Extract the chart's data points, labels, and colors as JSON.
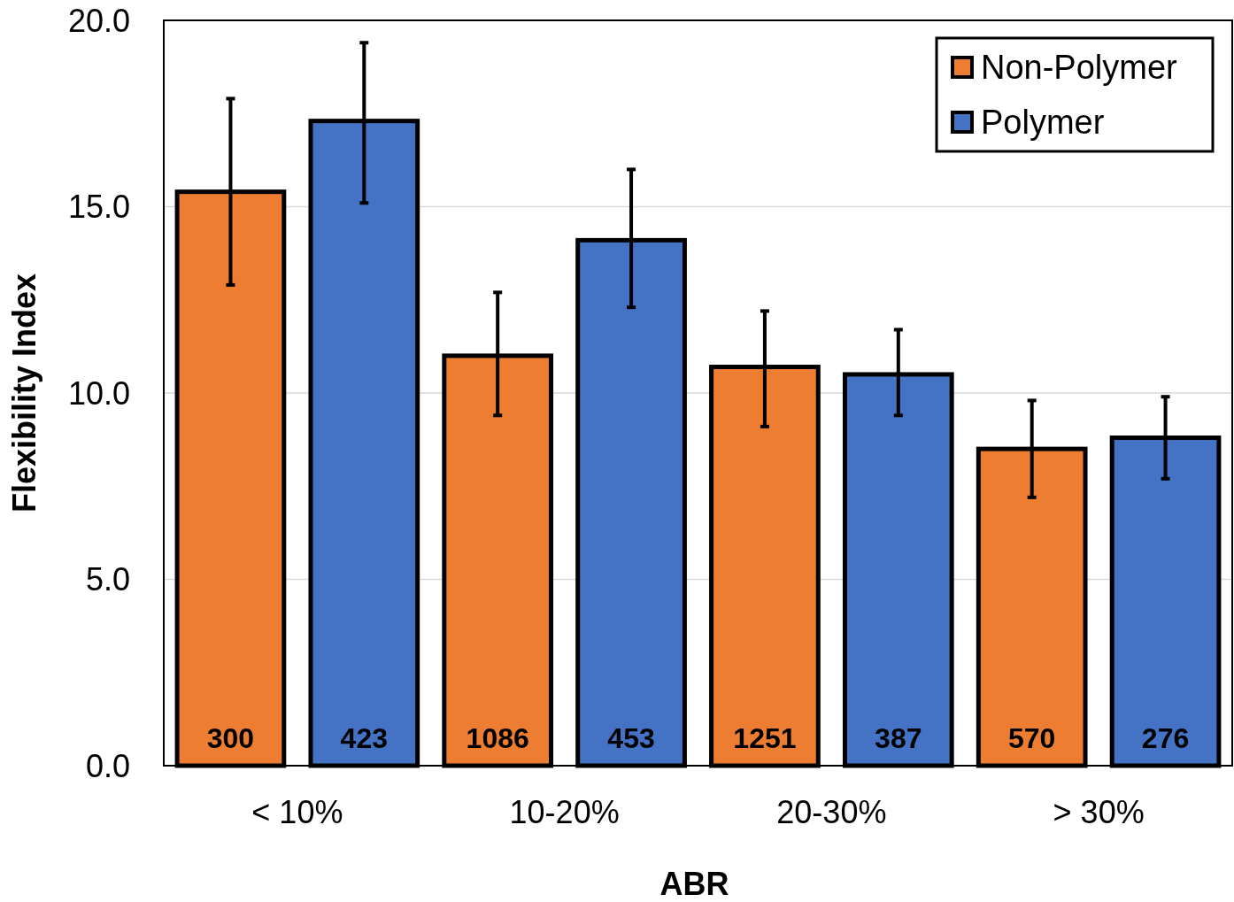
{
  "chart_data": {
    "type": "bar",
    "xlabel": "ABR",
    "ylabel": "Flexibility Index",
    "categories": [
      "< 10%",
      "10-20%",
      "20-30%",
      "> 30%"
    ],
    "series": [
      {
        "name": "Non-Polymer",
        "color": "#ed7d31",
        "values": [
          15.4,
          11.0,
          10.7,
          8.5
        ],
        "errors": [
          [
            12.9,
            17.9
          ],
          [
            9.4,
            12.7
          ],
          [
            9.1,
            12.2
          ],
          [
            7.2,
            9.8
          ]
        ]
      },
      {
        "name": "Polymer",
        "color": "#4472c4",
        "values": [
          17.3,
          14.1,
          10.5,
          8.8
        ],
        "errors": [
          [
            15.1,
            19.4
          ],
          [
            12.3,
            16.0
          ],
          [
            9.4,
            11.7
          ],
          [
            7.7,
            9.9
          ]
        ]
      }
    ],
    "annotations": [
      "300",
      "423",
      "1086",
      "453",
      "1251",
      "387",
      "570",
      "276"
    ],
    "ylim": [
      0,
      20
    ],
    "yticks": [
      {
        "value": 0,
        "label": "0.0"
      },
      {
        "value": 5,
        "label": "5.0"
      },
      {
        "value": 10,
        "label": "10.0"
      },
      {
        "value": 15,
        "label": "15.0"
      },
      {
        "value": 20,
        "label": "20.0"
      }
    ],
    "grid": "y",
    "legend": "top right"
  }
}
